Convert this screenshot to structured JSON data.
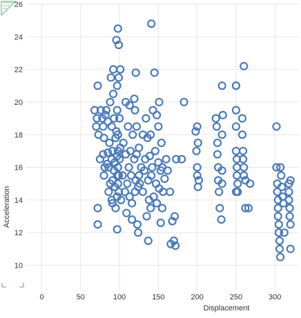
{
  "chart_data": {
    "type": "scatter",
    "title": "",
    "xlabel": "Displacement",
    "ylabel": "Acceleration",
    "xlim": [
      -20,
      330
    ],
    "ylim": [
      8.5,
      26
    ],
    "x_ticks": [
      0,
      50,
      100,
      150,
      200,
      250,
      300
    ],
    "y_ticks": [
      10,
      12,
      14,
      16,
      18,
      20,
      22,
      24,
      26
    ],
    "x_tick_labels": [
      "0",
      "50",
      "100",
      "150",
      "200",
      "250",
      "300"
    ],
    "y_tick_labels": [
      "10",
      "12",
      "14",
      "16",
      "18",
      "20",
      "22",
      "24",
      "26"
    ],
    "grid": true,
    "marker": "open-circle",
    "colors": {
      "marker": "#4a7ab8",
      "grid": "#e6e6e6",
      "corner": "#8dc49a"
    },
    "series": [
      {
        "points": [
          [
            68,
            19.5
          ],
          [
            70,
            18.5
          ],
          [
            71,
            19.0
          ],
          [
            72,
            21.0
          ],
          [
            72,
            13.5
          ],
          [
            72,
            12.5
          ],
          [
            73,
            18.0
          ],
          [
            75,
            16.5
          ],
          [
            76,
            19.5
          ],
          [
            78,
            19.0
          ],
          [
            79,
            16.8
          ],
          [
            79,
            18.5
          ],
          [
            80,
            15.5
          ],
          [
            80,
            17.8
          ],
          [
            81,
            16.0
          ],
          [
            82,
            19.2
          ],
          [
            83,
            19.5
          ],
          [
            84,
            16.2
          ],
          [
            85,
            16.9
          ],
          [
            85,
            18.8
          ],
          [
            86,
            14.5
          ],
          [
            86,
            16.0
          ],
          [
            87,
            17.5
          ],
          [
            88,
            15.0
          ],
          [
            88,
            20.0
          ],
          [
            89,
            21.5
          ],
          [
            90,
            14.0
          ],
          [
            90,
            16.5
          ],
          [
            90,
            18.5
          ],
          [
            91,
            13.8
          ],
          [
            91,
            15.2
          ],
          [
            91,
            17.0
          ],
          [
            92,
            22.0
          ],
          [
            92,
            20.5
          ],
          [
            93,
            15.8
          ],
          [
            93,
            19.0
          ],
          [
            94,
            14.8
          ],
          [
            94,
            16.3
          ],
          [
            95,
            17.8
          ],
          [
            95,
            13.5
          ],
          [
            96,
            18.2
          ],
          [
            97,
            14.2
          ],
          [
            97,
            15.5
          ],
          [
            97,
            16.7
          ],
          [
            97,
            19.5
          ],
          [
            97,
            21.0
          ],
          [
            98,
            15.0
          ],
          [
            98,
            16.0
          ],
          [
            98,
            17.0
          ],
          [
            98,
            18.0
          ],
          [
            99,
            14.5
          ],
          [
            99,
            15.5
          ],
          [
            100,
            16.5
          ],
          [
            100,
            19.0
          ],
          [
            101,
            17.2
          ],
          [
            102,
            14.0
          ],
          [
            104,
            15.5
          ],
          [
            105,
            17.5
          ],
          [
            107,
            14.5
          ],
          [
            108,
            16.8
          ],
          [
            108,
            20.0
          ],
          [
            110,
            15.0
          ],
          [
            111,
            18.5
          ],
          [
            112,
            16.0
          ],
          [
            113,
            14.2
          ],
          [
            114,
            17.0
          ],
          [
            115,
            15.5
          ],
          [
            116,
            13.8
          ],
          [
            117,
            18.0
          ],
          [
            119,
            16.5
          ],
          [
            120,
            14.5
          ],
          [
            120,
            19.5
          ],
          [
            121,
            15.2
          ],
          [
            121,
            21.8
          ],
          [
            122,
            16.8
          ],
          [
            122,
            18.5
          ],
          [
            123,
            12.5
          ],
          [
            124,
            14.8
          ],
          [
            125,
            15.5
          ],
          [
            125,
            17.2
          ],
          [
            128,
            16.0
          ],
          [
            130,
            14.5
          ],
          [
            132,
            15.8
          ],
          [
            133,
            16.5
          ],
          [
            134,
            19.0
          ],
          [
            135,
            13.0
          ],
          [
            136,
            17.8
          ],
          [
            137,
            15.2
          ],
          [
            138,
            14.0
          ],
          [
            139,
            16.7
          ],
          [
            140,
            13.5
          ],
          [
            140,
            18.0
          ],
          [
            141,
            15.5
          ],
          [
            142,
            16.0
          ],
          [
            143,
            19.5
          ],
          [
            144,
            14.2
          ],
          [
            146,
            17.0
          ],
          [
            147,
            15.0
          ],
          [
            148,
            13.8
          ],
          [
            150,
            16.3
          ],
          [
            150,
            18.5
          ],
          [
            151,
            14.7
          ],
          [
            151,
            20.0
          ],
          [
            153,
            15.8
          ],
          [
            154,
            17.5
          ],
          [
            155,
            13.5
          ],
          [
            155,
            16.0
          ],
          [
            156,
            14.5
          ],
          [
            158,
            15.3
          ],
          [
            160,
            16.5
          ],
          [
            162,
            15.8
          ],
          [
            165,
            14.5
          ],
          [
            168,
            12.7
          ],
          [
            170,
            11.5
          ],
          [
            171,
            13.0
          ],
          [
            173,
            16.5
          ],
          [
            98,
            24.5
          ],
          [
            141,
            24.8
          ],
          [
            99,
            23.5
          ],
          [
            96,
            23.8
          ],
          [
            109,
            13.2
          ],
          [
            116,
            12.8
          ],
          [
            124,
            12.0
          ],
          [
            137,
            11.5
          ],
          [
            166,
            11.3
          ],
          [
            172,
            11.2
          ],
          [
            153,
            12.6
          ],
          [
            97,
            12.2
          ],
          [
            99,
            21.5
          ],
          [
            101,
            22.0
          ],
          [
            113,
            19.8
          ],
          [
            119,
            20.2
          ],
          [
            126,
            15.0
          ],
          [
            145,
            21.8
          ],
          [
            148,
            19.2
          ],
          [
            130,
            18.0
          ],
          [
            183,
            20.0
          ],
          [
            180,
            16.5
          ],
          [
            198,
            18.2
          ],
          [
            199,
            17.0
          ],
          [
            200,
            16.0
          ],
          [
            200,
            15.5
          ],
          [
            201,
            14.8
          ],
          [
            200,
            18.5
          ],
          [
            201,
            17.5
          ],
          [
            202,
            15.2
          ],
          [
            224,
            19.0
          ],
          [
            225,
            18.5
          ],
          [
            226,
            17.5
          ],
          [
            226,
            16.8
          ],
          [
            227,
            16.0
          ],
          [
            227,
            15.2
          ],
          [
            228,
            14.5
          ],
          [
            229,
            13.5
          ],
          [
            231,
            12.8
          ],
          [
            232,
            18.0
          ],
          [
            233,
            19.2
          ],
          [
            232,
            21.0
          ],
          [
            232,
            15.8
          ],
          [
            232,
            15.0
          ],
          [
            250,
            21.0
          ],
          [
            250,
            21.0
          ],
          [
            250,
            19.5
          ],
          [
            250,
            18.5
          ],
          [
            250,
            17.0
          ],
          [
            251,
            16.5
          ],
          [
            251,
            16.0
          ],
          [
            251,
            15.5
          ],
          [
            252,
            15.0
          ],
          [
            252,
            14.5
          ],
          [
            250,
            14.5
          ],
          [
            258,
            19.0
          ],
          [
            258,
            18.0
          ],
          [
            259,
            17.0
          ],
          [
            259,
            16.5
          ],
          [
            260,
            16.0
          ],
          [
            260,
            15.5
          ],
          [
            260,
            22.2
          ],
          [
            262,
            15.2
          ],
          [
            262,
            13.5
          ],
          [
            266,
            13.5
          ],
          [
            268,
            15.0
          ],
          [
            302,
            18.5
          ],
          [
            302,
            16.0
          ],
          [
            303,
            15.0
          ],
          [
            303,
            14.5
          ],
          [
            304,
            14.0
          ],
          [
            304,
            13.5
          ],
          [
            304,
            13.0
          ],
          [
            305,
            12.5
          ],
          [
            305,
            12.0
          ],
          [
            306,
            11.5
          ],
          [
            306,
            11.0
          ],
          [
            307,
            10.5
          ],
          [
            307,
            16.0
          ],
          [
            308,
            15.5
          ],
          [
            309,
            14.8
          ],
          [
            310,
            14.2
          ],
          [
            311,
            13.8
          ],
          [
            312,
            12.0
          ],
          [
            318,
            15.0
          ],
          [
            318,
            14.5
          ],
          [
            318,
            14.0
          ],
          [
            319,
            13.5
          ],
          [
            319,
            13.0
          ],
          [
            320,
            12.5
          ],
          [
            320,
            11.0
          ],
          [
            320,
            15.2
          ]
        ]
      }
    ]
  }
}
